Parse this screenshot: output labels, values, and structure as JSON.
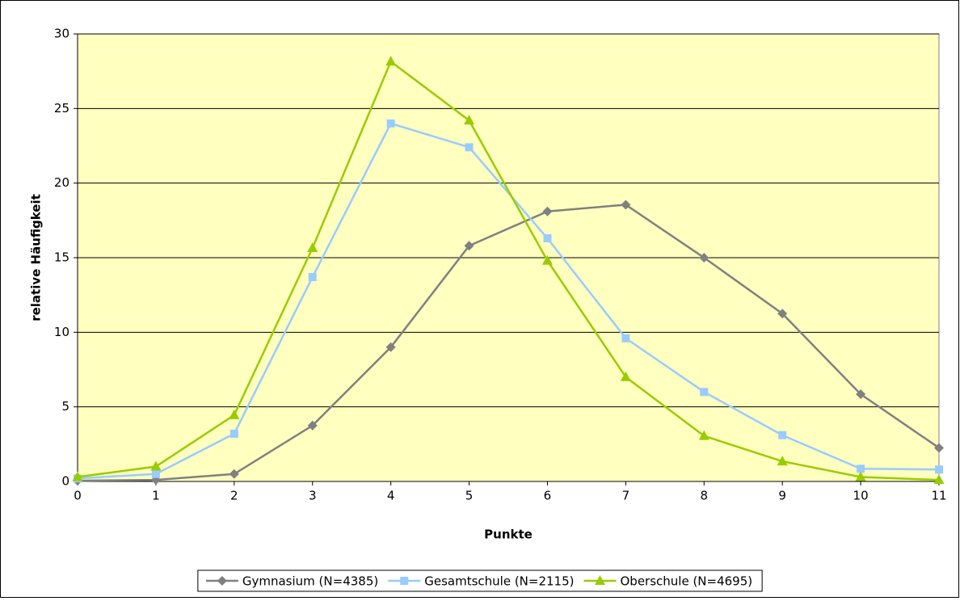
{
  "chart_data": {
    "type": "line",
    "xlabel": "Punkte",
    "ylabel": "relative Häufigkeit",
    "x": [
      0,
      1,
      2,
      3,
      4,
      5,
      6,
      7,
      8,
      9,
      10,
      11
    ],
    "xlim": [
      0,
      11
    ],
    "xticks": [
      0,
      1,
      2,
      3,
      4,
      5,
      6,
      7,
      8,
      9,
      10,
      11
    ],
    "ylim": [
      0,
      30
    ],
    "yticks": [
      0,
      5,
      10,
      15,
      20,
      25,
      30
    ],
    "grid": true,
    "legend": "bottom",
    "background": "#ffffc0",
    "series": [
      {
        "name": "Gymnasium (N=4385)",
        "color": "#808080",
        "marker": "diamond",
        "values": [
          0.05,
          0.1,
          0.5,
          3.75,
          9.0,
          15.8,
          18.1,
          18.55,
          15.0,
          11.25,
          5.85,
          2.25
        ]
      },
      {
        "name": "Gesamtschule (N=2115)",
        "color": "#99ccff",
        "marker": "square",
        "values": [
          0.2,
          0.5,
          3.2,
          13.7,
          24.0,
          22.4,
          16.3,
          9.6,
          6.0,
          3.1,
          0.85,
          0.8
        ]
      },
      {
        "name": "Oberschule (N=4695)",
        "color": "#99cc00",
        "marker": "triangle",
        "values": [
          0.3,
          1.0,
          4.45,
          15.65,
          28.15,
          24.2,
          14.8,
          7.0,
          3.05,
          1.35,
          0.3,
          0.1
        ]
      }
    ]
  }
}
